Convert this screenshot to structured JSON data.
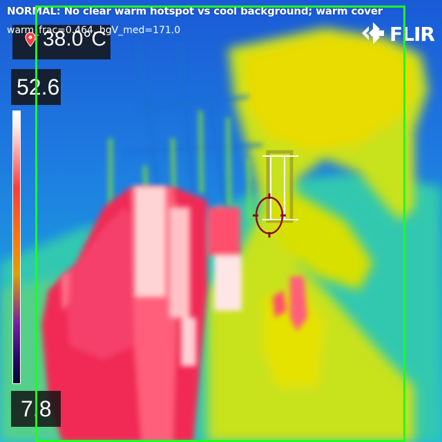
{
  "status": {
    "message": "NORMAL: No clear warm hotspot vs cool background; warm cover",
    "metrics": "warm_frac=0.464, bgV_med=171.0"
  },
  "readouts": {
    "spot_temperature": "38.0°C",
    "scale_max": "52.6",
    "scale_min": "7.8"
  },
  "brand": {
    "name": "FLIR"
  },
  "icons": {
    "spot": "map-pin-icon",
    "crosshair": "crosshair-icon",
    "logo": "flir-logo-icon"
  },
  "colors": {
    "detection_box": "#1dff1d",
    "crosshair": "#8b0a14",
    "background_cool": "#1d5fd8",
    "hot": "#ff2f55"
  }
}
